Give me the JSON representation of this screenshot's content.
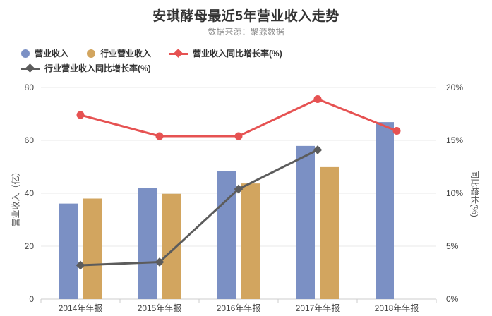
{
  "title": "安琪酵母最近5年营业收入走势",
  "subtitle": "数据来源：聚源数据",
  "legend": {
    "rows": [
      [
        {
          "label": "营业收入",
          "marker": "circle",
          "color": "#7b90c4"
        },
        {
          "label": "行业营业收入",
          "marker": "circle",
          "color": "#d2a55f"
        },
        {
          "label": "营业收入同比增长率(%)",
          "marker": "line-diamond",
          "color": "#e65252"
        }
      ],
      [
        {
          "label": "行业营业收入同比增长率(%)",
          "marker": "line-diamond",
          "color": "#5c5c5c"
        }
      ]
    ]
  },
  "chart_data": {
    "type": "bar-line-combo",
    "categories": [
      "2014年年报",
      "2015年年报",
      "2016年年报",
      "2017年年报",
      "2018年年报"
    ],
    "series": [
      {
        "name": "营业收入",
        "type": "bar",
        "axis": "left",
        "color": "#7b90c4",
        "values": [
          36.1,
          42.1,
          48.4,
          57.9,
          66.9
        ]
      },
      {
        "name": "行业营业收入",
        "type": "bar",
        "axis": "left",
        "color": "#d2a55f",
        "values": [
          38.0,
          39.8,
          43.7,
          49.9,
          null
        ]
      },
      {
        "name": "营业收入同比增长率(%)",
        "type": "line",
        "symbol": "circle",
        "axis": "right",
        "color": "#e65252",
        "values": [
          17.4,
          15.4,
          15.4,
          18.9,
          15.9
        ]
      },
      {
        "name": "行业营业收入同比增长率(%)",
        "type": "line",
        "symbol": "diamond",
        "axis": "right",
        "color": "#5c5c5c",
        "values": [
          3.2,
          3.5,
          10.4,
          14.1,
          null
        ]
      }
    ],
    "left_axis": {
      "label": "营业收入（亿）",
      "ticks": [
        0,
        20,
        40,
        60,
        80
      ],
      "min": 0,
      "max": 80
    },
    "right_axis": {
      "label": "同比增长(%)",
      "ticks": [
        "0%",
        "5%",
        "10%",
        "15%",
        "20%"
      ],
      "min": 0,
      "max": 20
    },
    "grid": true,
    "legend_position": "top-left"
  },
  "colors": {
    "grid_line": "#e9e9e9",
    "axis_line": "#cccccc",
    "tick_text": "#444444",
    "title_text": "#333333",
    "subtitle_text": "#8b8b8b"
  }
}
